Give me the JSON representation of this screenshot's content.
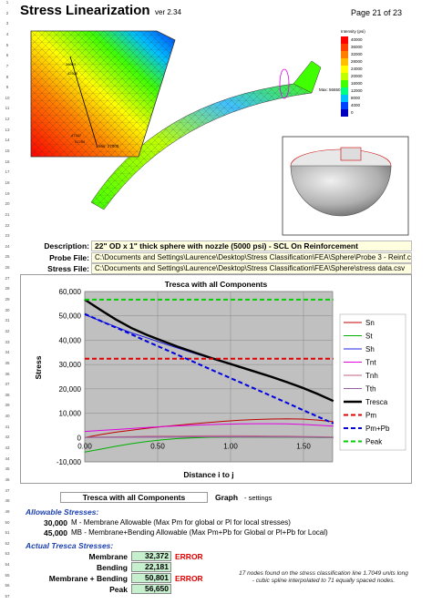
{
  "header": {
    "title": "Stress Linearization",
    "version": "ver 2.34",
    "page": "Page 21 of 23"
  },
  "legend_panel": {
    "title": "Intensity (psi)",
    "levels": [
      "40000",
      "36000",
      "32000",
      "28000",
      "24000",
      "20000",
      "16000",
      "12000",
      "8000",
      "4000",
      "0"
    ],
    "colors": [
      "#ff0000",
      "#ff4000",
      "#ff8000",
      "#ffbf00",
      "#ffff00",
      "#bfff00",
      "#40ff00",
      "#00ff80",
      "#00c0ff",
      "#0040ff",
      "#0000c0"
    ],
    "max_label": "Max: 56650"
  },
  "fea_labels": [
    "Min: 27000",
    "51789",
    "47347",
    "42505",
    "38063"
  ],
  "description": {
    "description_label": "Description:",
    "description_value": "22\" OD x 1\" thick sphere with nozzle (5000 psi) - SCL On Reinforcement",
    "probe_label": "Probe File:",
    "probe_value": "C:\\Documents and Settings\\Laurence\\Desktop\\Stress Classification\\FEA\\Sphere\\Probe 3 - Reinf.csv",
    "stress_label": "Stress File:",
    "stress_value": "C:\\Documents and Settings\\Laurence\\Desktop\\Stress Classification\\FEA\\Sphere\\stress data.csv"
  },
  "chart_data": {
    "type": "line",
    "title": "Tresca with all Components",
    "xlabel": "Distance i to j",
    "ylabel": "Stress",
    "xlim": [
      0,
      1.7
    ],
    "ylim": [
      -10000,
      60000
    ],
    "xticks": [
      "0.00",
      "0.50",
      "1.00",
      "1.50"
    ],
    "xtick_values": [
      0,
      0.5,
      1.0,
      1.5
    ],
    "yticks": [
      "60,000",
      "50,000",
      "40,000",
      "30,000",
      "20,000",
      "10,000",
      "0",
      "-10,000"
    ],
    "ytick_values": [
      60000,
      50000,
      40000,
      30000,
      20000,
      10000,
      0,
      -10000
    ],
    "x": [
      0,
      0.106,
      0.213,
      0.32,
      0.426,
      0.533,
      0.639,
      0.746,
      0.852,
      0.959,
      1.065,
      1.172,
      1.278,
      1.385,
      1.491,
      1.598,
      1.7049
    ],
    "series": [
      {
        "name": "Sn",
        "color": "#c00000",
        "width": 1,
        "dash": "",
        "values": [
          0,
          1200,
          2200,
          3000,
          3800,
          4500,
          5100,
          5700,
          6200,
          6700,
          7100,
          7400,
          7600,
          7700,
          7600,
          7200,
          6500
        ]
      },
      {
        "name": "St",
        "color": "#00b000",
        "width": 1,
        "dash": "",
        "values": [
          -6000,
          -4800,
          -3600,
          -2500,
          -1600,
          -900,
          -400,
          -100,
          100,
          200,
          250,
          250,
          200,
          150,
          100,
          50,
          0
        ]
      },
      {
        "name": "Sh",
        "color": "#2020e0",
        "width": 1,
        "dash": "",
        "values": [
          50500,
          48000,
          45500,
          43000,
          41000,
          38800,
          36700,
          34700,
          32700,
          30800,
          28800,
          26800,
          24800,
          22600,
          20300,
          17800,
          15000
        ]
      },
      {
        "name": "Tnt",
        "color": "#e000e0",
        "width": 1,
        "dash": "",
        "values": [
          2500,
          2900,
          3300,
          3700,
          4100,
          4500,
          4800,
          5100,
          5300,
          5500,
          5600,
          5700,
          5700,
          5600,
          5400,
          5100,
          4700
        ]
      },
      {
        "name": "Tnh",
        "color": "#c06080",
        "width": 1,
        "dash": "",
        "values": [
          100,
          200,
          300,
          400,
          500,
          550,
          600,
          650,
          700,
          700,
          700,
          650,
          600,
          550,
          450,
          350,
          200
        ]
      },
      {
        "name": "Tth",
        "color": "#9060a0",
        "width": 1,
        "dash": "",
        "values": [
          50,
          80,
          120,
          160,
          200,
          230,
          260,
          280,
          300,
          300,
          290,
          270,
          240,
          200,
          150,
          100,
          50
        ]
      },
      {
        "name": "Tresca",
        "color": "#000000",
        "width": 2.4,
        "dash": "",
        "values": [
          56650,
          52500,
          48500,
          45000,
          42200,
          39700,
          37300,
          35100,
          33000,
          31000,
          29000,
          27000,
          25000,
          22800,
          20500,
          17900,
          15000
        ]
      },
      {
        "name": "Pm",
        "color": "#e00000",
        "width": 2,
        "dash": "5,3",
        "values": [
          32372,
          32372,
          32372,
          32372,
          32372,
          32372,
          32372,
          32372,
          32372,
          32372,
          32372,
          32372,
          32372,
          32372,
          32372,
          32372,
          32372
        ]
      },
      {
        "name": "Pm+Pb",
        "color": "#0000e0",
        "width": 2,
        "dash": "5,3",
        "values": [
          50801,
          48000,
          45200,
          42400,
          39500,
          36700,
          33900,
          31100,
          28300,
          25500,
          22700,
          19900,
          17100,
          14300,
          11400,
          8600,
          5800
        ]
      },
      {
        "name": "Peak",
        "color": "#00d000",
        "width": 2,
        "dash": "5,3",
        "values": [
          56650,
          56650,
          56650,
          56650,
          56650,
          56650,
          56650,
          56650,
          56650,
          56650,
          56650,
          56650,
          56650,
          56650,
          56650,
          56650,
          56650
        ]
      }
    ],
    "grid": true,
    "legend": "right"
  },
  "graph_settings": {
    "selected": "Tresca with all Components",
    "label": "Graph",
    "suffix": "- settings"
  },
  "allowable": {
    "heading": "Allowable Stresses:",
    "m_value": "30,000",
    "m_desc": "M - Membrane Allowable (Max Pm for global or Pl for local stresses)",
    "mb_value": "45,000",
    "mb_desc": "MB - Membrane+Bending Allowable (Max Pm+Pb for Global or Pl+Pb for Local)"
  },
  "tresca": {
    "heading": "Actual Tresca Stresses:",
    "rows": [
      {
        "label": "Membrane",
        "value": "32,372",
        "status": "ERROR"
      },
      {
        "label": "Bending",
        "value": "22,181",
        "status": ""
      },
      {
        "label": "Membrane + Bending",
        "value": "50,801",
        "status": "ERROR"
      },
      {
        "label": "Peak",
        "value": "56,650",
        "status": ""
      }
    ]
  },
  "note": "17 nodes found on the stress classification line 1.7049 units long - cubic spline interpolated to 71 equally spaced nodes.",
  "row_numbers": [
    "1",
    "2",
    "3",
    "4",
    "5",
    "6",
    "7",
    "8",
    "9",
    "10",
    "11",
    "12",
    "13",
    "14",
    "15",
    "16",
    "17",
    "18",
    "19",
    "20",
    "21",
    "22",
    "23",
    "24",
    "25",
    "26",
    "27",
    "28",
    "29",
    "30",
    "31",
    "32",
    "33",
    "34",
    "35",
    "36",
    "37",
    "38",
    "39",
    "40",
    "41",
    "42",
    "43",
    "44",
    "45",
    "46",
    "47",
    "48",
    "49",
    "50",
    "51",
    "52",
    "53",
    "54",
    "55",
    "56",
    "57"
  ]
}
